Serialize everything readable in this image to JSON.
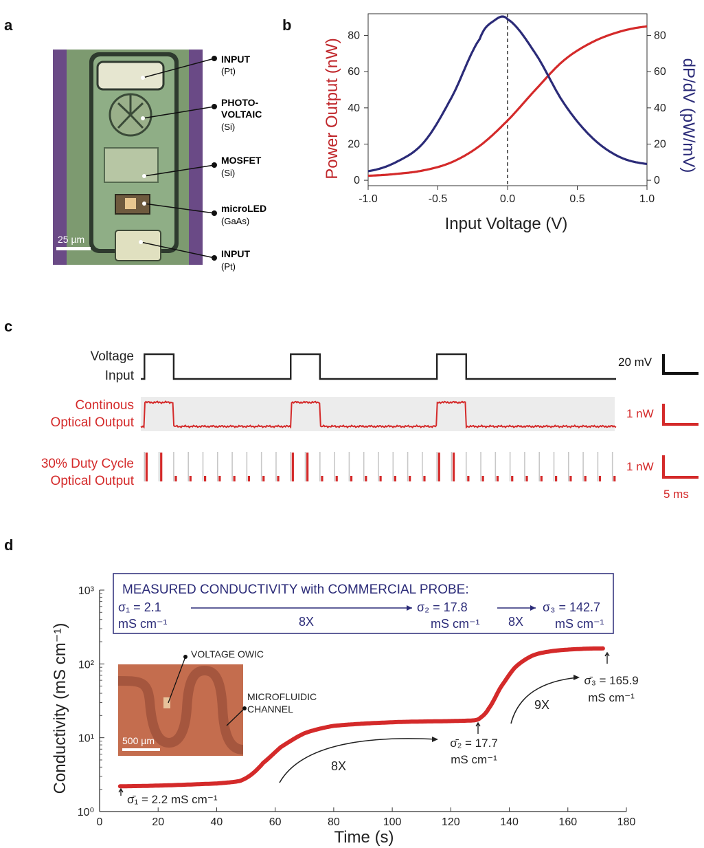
{
  "panel_labels": [
    "a",
    "b",
    "c",
    "d"
  ],
  "panel_a": {
    "scale_bar": "25 µm",
    "callouts": [
      {
        "name": "INPUT",
        "material": "(Pt)"
      },
      {
        "name": "PHOTO-\nVOLTAIC",
        "material": "(Si)"
      },
      {
        "name": "MOSFET",
        "material": "(Si)"
      },
      {
        "name": "microLED",
        "material": "(GaAs)"
      },
      {
        "name": "INPUT",
        "material": "(Pt)"
      }
    ]
  },
  "panel_d_extra": {
    "probe_box_title": "MEASURED CONDUCTIVITY with COMMERCIAL PROBE:",
    "probe_sigma1": "σ₁ = 2.1",
    "probe_sigma2": "σ₂ = 17.8",
    "probe_sigma3": "σ₃ = 142.7",
    "unit": "mS cm⁻¹",
    "ratio_1": "8X",
    "ratio_2": "8X",
    "inset_label_1": "VOLTAGE OWIC",
    "inset_label_2": "MICROFLUIDIC\nCHANNEL",
    "inset_scale": "500 µm",
    "meas_1": "σ̄₁ = 2.2 mS cm⁻¹",
    "meas_2": "σ̄₂ = 17.7\nmS cm⁻¹",
    "meas_3": "σ̄₃ = 165.9\nmS cm⁻¹",
    "curve_ratio_1": "8X",
    "curve_ratio_2": "9X"
  },
  "colors": {
    "red": "#d42a2a",
    "navy": "#2b2b78",
    "gray_band": "#ececec",
    "black": "#222222"
  },
  "chart_data": [
    {
      "type": "line",
      "panel": "b",
      "xlabel": "Input Voltage (V)",
      "ylabel_left": "Power Output (nW)",
      "ylabel_right": "dP/dV (pW/mV)",
      "xlim": [
        -1.0,
        1.0
      ],
      "ylim_left": [
        -3,
        92
      ],
      "ylim_right": [
        -3,
        92
      ],
      "xticks": [
        "-1.0",
        "-0.5",
        "0.0",
        "0.5",
        "1.0"
      ],
      "yticks_left": [
        "0",
        "20",
        "40",
        "60",
        "80"
      ],
      "yticks_right": [
        "0",
        "20",
        "40",
        "60",
        "80"
      ],
      "vline_x": 0.0,
      "series": [
        {
          "axis": "left",
          "color": "#d42a2a",
          "x": [
            -1.0,
            -0.8,
            -0.6,
            -0.4,
            -0.2,
            0.0,
            0.2,
            0.4,
            0.6,
            0.8,
            1.0
          ],
          "values": [
            2.5,
            3.5,
            5.5,
            10,
            19,
            33,
            50,
            66,
            76,
            82,
            85
          ]
        },
        {
          "axis": "right",
          "color": "#2b2b78",
          "x": [
            -1.0,
            -0.8,
            -0.6,
            -0.4,
            -0.2,
            -0.1,
            0.0,
            0.2,
            0.4,
            0.6,
            0.8,
            1.0
          ],
          "values": [
            5,
            10,
            21,
            46,
            78,
            88,
            89,
            70,
            43,
            24,
            13,
            9
          ]
        }
      ]
    },
    {
      "type": "line",
      "panel": "c",
      "series_labels": [
        "Voltage\nInput",
        "Continous\nOptical Output",
        "30% Duty Cycle\nOptical Output"
      ],
      "scale_bar_labels": [
        "20 mV",
        "1 nW",
        "1 nW",
        "5 ms"
      ],
      "time_ms": [
        0,
        65
      ],
      "pulse_windows_ms": [
        [
          0.5,
          4.5
        ],
        [
          20.5,
          24.5
        ],
        [
          40.5,
          44.5
        ]
      ],
      "pulse_period_ms": 2,
      "duty_cycle": 0.3
    },
    {
      "type": "line",
      "panel": "d",
      "xlabel": "Time (s)",
      "ylabel": "Conductivity (mS cm⁻¹)",
      "xlim": [
        0,
        180
      ],
      "ylim": [
        1,
        1000
      ],
      "yscale": "log",
      "xticks": [
        "0",
        "20",
        "40",
        "60",
        "80",
        "100",
        "120",
        "140",
        "160",
        "180"
      ],
      "yticks": [
        "10⁰",
        "10¹",
        "10²",
        "10³"
      ],
      "series": [
        {
          "color": "#d42a2a",
          "x": [
            7,
            20,
            40,
            48,
            52,
            56,
            62,
            70,
            80,
            100,
            120,
            128,
            130,
            133,
            137,
            142,
            148,
            155,
            165,
            172
          ],
          "values": [
            2.2,
            2.25,
            2.4,
            2.6,
            3.2,
            4.6,
            7.5,
            11.5,
            14.5,
            16.2,
            16.8,
            17.2,
            18.5,
            25,
            48,
            90,
            130,
            150,
            160,
            162
          ]
        }
      ]
    }
  ]
}
